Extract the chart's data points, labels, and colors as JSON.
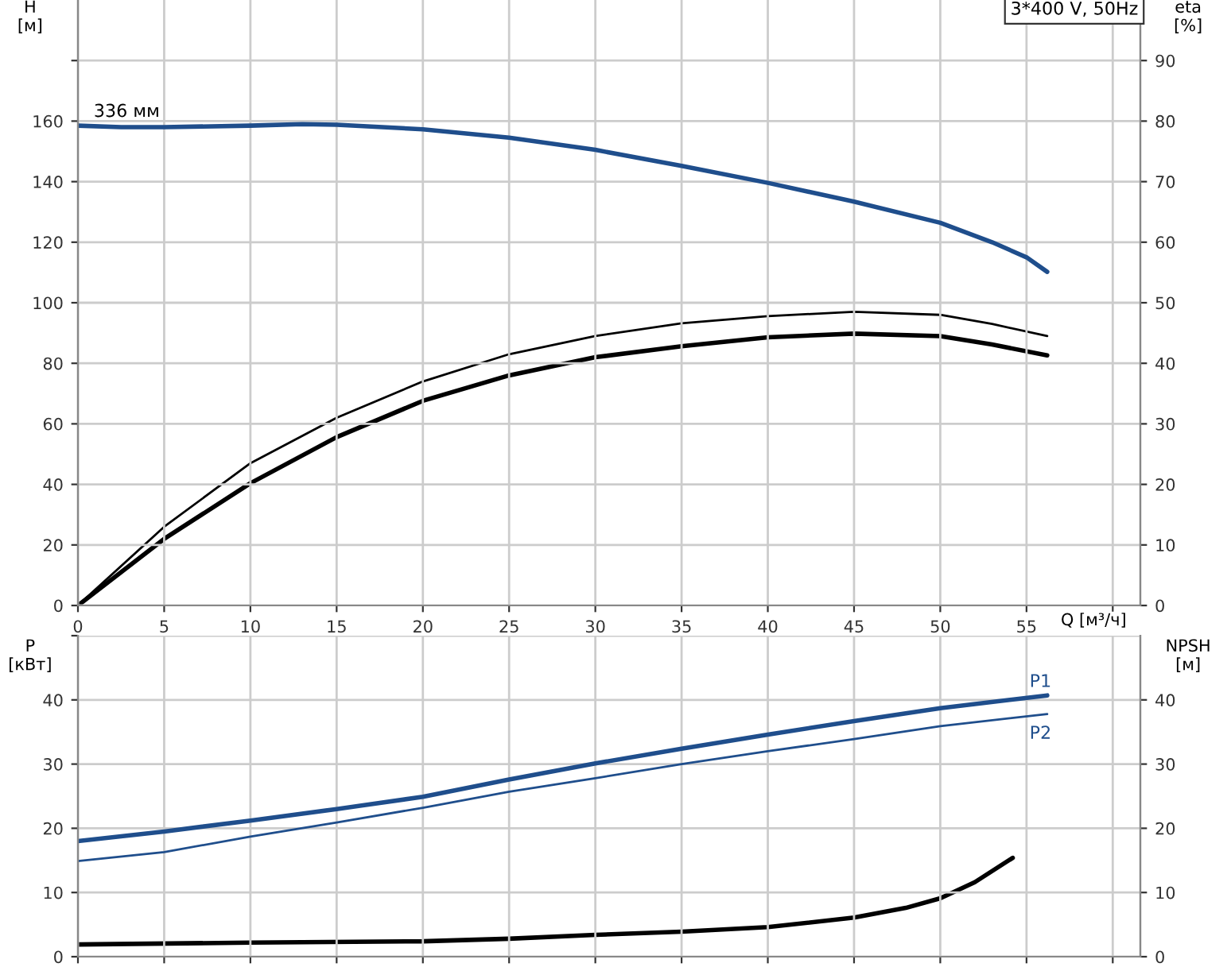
{
  "chart_data": [
    {
      "type": "line",
      "xlabel": "Q [м³/ч]",
      "ylabel": "H\n[м]",
      "y2label": "eta\n[%]",
      "xlim": [
        0,
        61.6
      ],
      "xticks": [
        0,
        5,
        10,
        15,
        20,
        25,
        30,
        35,
        40,
        45,
        50,
        55,
        {
          "value": 60,
          "label": null
        }
      ],
      "ylim": [
        0,
        200
      ],
      "yticks": [
        0,
        20,
        40,
        60,
        80,
        100,
        120,
        140,
        160,
        {
          "value": 180,
          "label": null
        }
      ],
      "y2lim": [
        0,
        100
      ],
      "y2ticks": [
        0,
        10,
        20,
        30,
        40,
        50,
        60,
        70,
        80,
        90
      ],
      "grid": true,
      "line_style": "solid",
      "marker": "none",
      "annotations": [
        {
          "text": "336 мм",
          "x": 5,
          "y": 158
        },
        "3*400 V, 50Hz"
      ],
      "series": [
        {
          "color": "#1f4e8c",
          "x": [
            0,
            2.5,
            5,
            10,
            13,
            15,
            20,
            25,
            30,
            35,
            40,
            45,
            50,
            53,
            55,
            56.2
          ],
          "values": [
            158.5,
            158,
            158,
            158.5,
            159,
            158.8,
            157.3,
            154.5,
            150.5,
            145.2,
            139.6,
            133.4,
            126.4,
            120,
            115,
            110.2
          ]
        },
        {
          "color": "#000000",
          "axis": "y2",
          "x": [
            0,
            5,
            10,
            15,
            20,
            25,
            30,
            35,
            40,
            45,
            50,
            53,
            56.2
          ],
          "values": [
            0,
            13,
            23.5,
            31,
            37,
            41.5,
            44.5,
            46.6,
            47.8,
            48.5,
            48,
            46.5,
            44.5
          ]
        },
        {
          "color": "#000000",
          "axis": "y2",
          "x": [
            0,
            5,
            10,
            15,
            20,
            25,
            30,
            35,
            40,
            45,
            50,
            53,
            56.2
          ],
          "values": [
            0,
            11,
            20.2,
            27.8,
            33.8,
            38,
            41,
            42.8,
            44.3,
            44.9,
            44.5,
            43.1,
            41.3
          ]
        }
      ]
    },
    {
      "type": "line",
      "ylabel": "P\n[кВт]",
      "y2label": "NPSH\n[м]",
      "tick_labels": "y",
      "xlim": [
        0,
        61.6
      ],
      "xticks": [
        0,
        5,
        10,
        15,
        20,
        25,
        30,
        35,
        40,
        45,
        50,
        55,
        60
      ],
      "ylim": [
        0,
        50
      ],
      "yticks": [
        0,
        10,
        20,
        30,
        40,
        {
          "value": 50,
          "label": null
        }
      ],
      "y2lim": [
        0,
        50
      ],
      "y2ticks": [
        0,
        10,
        20,
        30,
        40
      ],
      "grid": true,
      "line_style": "solid",
      "marker": "none",
      "series": [
        {
          "name": "P1",
          "color": "#1f4e8c",
          "x": [
            0,
            5,
            10,
            15,
            20,
            25,
            30,
            35,
            40,
            45,
            50,
            56.2
          ],
          "values": [
            18,
            19.5,
            21.2,
            23,
            24.9,
            27.6,
            30.1,
            32.4,
            34.6,
            36.7,
            38.7,
            40.7
          ]
        },
        {
          "name": "P2",
          "color": "#1f4e8c",
          "x": [
            0,
            5,
            10,
            15,
            20,
            25,
            30,
            35,
            40,
            45,
            50,
            56.2
          ],
          "values": [
            14.9,
            16.3,
            18.7,
            20.9,
            23.2,
            25.7,
            27.8,
            30,
            32,
            33.9,
            35.9,
            37.8
          ]
        },
        {
          "color": "#000000",
          "axis": "y2",
          "x": [
            0,
            10,
            20,
            25,
            30,
            35,
            40,
            45,
            48,
            50,
            52,
            54.2
          ],
          "values": [
            1.9,
            2.2,
            2.4,
            2.8,
            3.4,
            3.9,
            4.6,
            6.1,
            7.6,
            9.1,
            11.6,
            15.4
          ]
        }
      ]
    }
  ]
}
